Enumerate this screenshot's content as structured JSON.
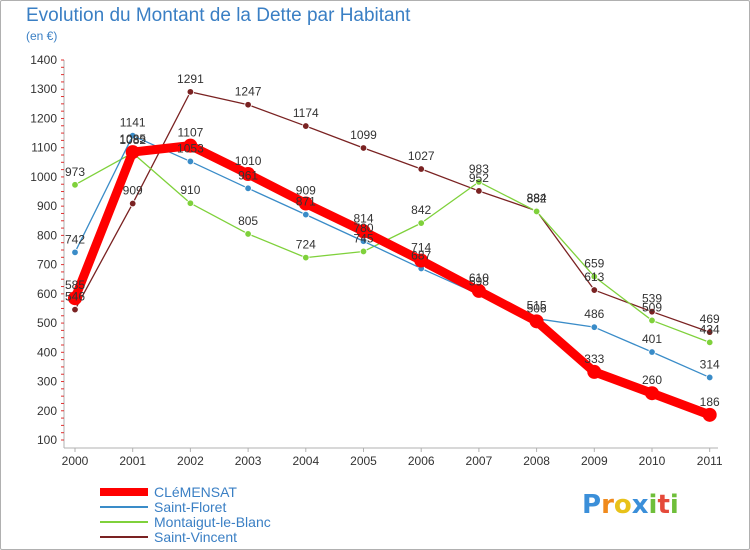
{
  "chart_data": {
    "type": "line",
    "title": "Evolution du Montant de la Dette par Habitant",
    "subtitle": "(en €)",
    "ylim": [
      100,
      1400
    ],
    "yticks": [
      100,
      200,
      300,
      400,
      500,
      600,
      700,
      800,
      900,
      1000,
      1100,
      1200,
      1300,
      1400
    ],
    "x": [
      "2000",
      "2001",
      "2002",
      "2003",
      "2004",
      "2005",
      "2006",
      "2007",
      "2008",
      "2009",
      "2010",
      "2011"
    ],
    "grid": false,
    "legend_position": "bottom",
    "series": [
      {
        "name": "CLéMENSAT",
        "color": "#ff0000",
        "values": [
          585,
          1085,
          1107,
          1010,
          909,
          814,
          714,
          610,
          506,
          333,
          260,
          186
        ]
      },
      {
        "name": "Saint-Floret",
        "color": "#3a8cc8",
        "values": [
          742,
          1141,
          1053,
          961,
          871,
          780,
          687,
          598,
          515,
          486,
          401,
          314
        ]
      },
      {
        "name": "Montaigut-le-Blanc",
        "color": "#7fd13b",
        "values": [
          973,
          1082,
          910,
          805,
          724,
          745,
          842,
          983,
          882,
          659,
          509,
          434
        ]
      },
      {
        "name": "Saint-Vincent",
        "color": "#7a2222",
        "values": [
          546,
          909,
          1291,
          1247,
          1174,
          1099,
          1027,
          952,
          884,
          613,
          539,
          469
        ]
      }
    ]
  },
  "logo": {
    "letters": [
      "P",
      "r",
      "o",
      "x",
      "i",
      "t",
      "i"
    ],
    "colors": [
      "#3b8fd9",
      "#f08a1c",
      "#e8c21a",
      "#3b8fd9",
      "#6fbf3a",
      "#e54a3a",
      "#6fbf3a"
    ]
  }
}
